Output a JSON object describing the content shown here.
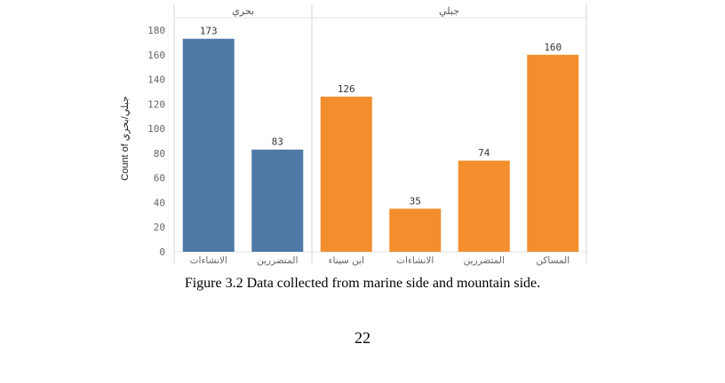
{
  "chart_data": {
    "type": "bar",
    "ylabel": "Count of جبلي/بحري",
    "xlabel": "",
    "ylim": [
      0,
      190
    ],
    "yticks": [
      0,
      20,
      40,
      60,
      80,
      100,
      120,
      140,
      160,
      180
    ],
    "grid": false,
    "panels": [
      {
        "header": "بحري",
        "color": "#4e79a7",
        "categories": [
          "الانشاءات",
          "المتضررين"
        ],
        "values": [
          173,
          83
        ]
      },
      {
        "header": "جبلي",
        "color": "#f28e2b",
        "categories": [
          "ابن سيناء",
          "الانشاءات",
          "المتضررين",
          "المساكن"
        ],
        "values": [
          126,
          35,
          74,
          160
        ]
      }
    ]
  },
  "caption": "Figure 3.2 Data collected from marine side and mountain side.",
  "page_number": "22"
}
